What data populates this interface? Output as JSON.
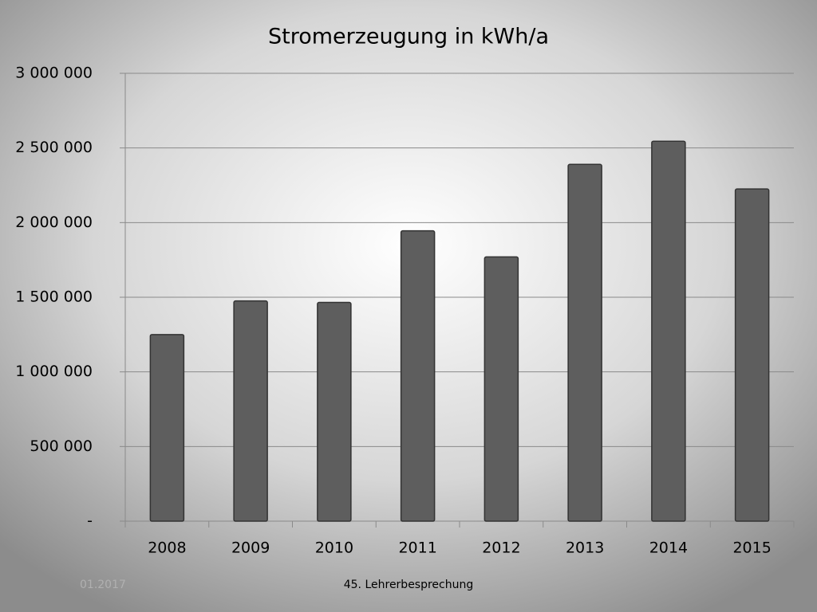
{
  "chart_data": {
    "type": "bar",
    "title": "Stromerzeugung in kWh/a",
    "categories": [
      "2008",
      "2009",
      "2010",
      "2011",
      "2012",
      "2013",
      "2014",
      "2015"
    ],
    "values": [
      1250000,
      1475000,
      1465000,
      1945000,
      1770000,
      2390000,
      2545000,
      2225000
    ],
    "color": "#5e5e5e",
    "ylim": [
      0,
      3000000
    ],
    "yticks": [
      {
        "value": 0,
        "label": "-"
      },
      {
        "value": 500000,
        "label": "500 000"
      },
      {
        "value": 1000000,
        "label": "1 000 000"
      },
      {
        "value": 1500000,
        "label": "1 500 000"
      },
      {
        "value": 2000000,
        "label": "2 000 000"
      },
      {
        "value": 2500000,
        "label": "2 500 000"
      },
      {
        "value": 3000000,
        "label": "3 000 000"
      }
    ],
    "grid": true
  },
  "footer": {
    "date": "01.2017",
    "text": "45. Lehrerbesprechung"
  }
}
